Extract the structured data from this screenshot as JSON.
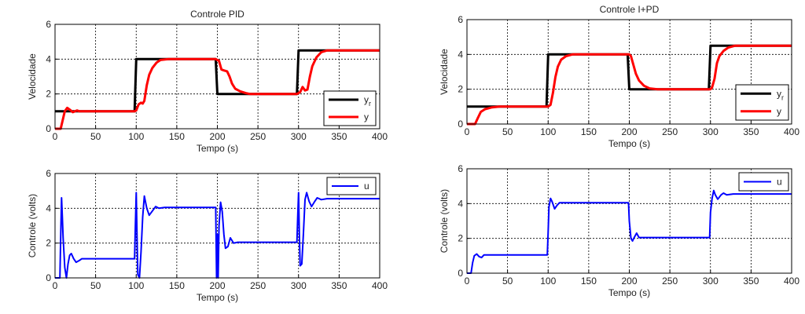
{
  "chart_data": [
    {
      "type": "line",
      "title": "Controle PID",
      "xlabel": "Tempo (s)",
      "ylabel": "Velocidade",
      "xlim": [
        0,
        400
      ],
      "ylim": [
        0,
        6
      ],
      "xticks": [
        0,
        50,
        100,
        150,
        200,
        250,
        300,
        350,
        400
      ],
      "yticks": [
        0,
        2,
        4,
        6
      ],
      "grid": true,
      "legend": "bottom-right",
      "series": [
        {
          "name": "y",
          "subscript": "r",
          "color": "#000000",
          "points": [
            [
              0,
              1
            ],
            [
              98,
              1
            ],
            [
              100,
              4
            ],
            [
              198,
              4
            ],
            [
              200,
              2
            ],
            [
              298,
              2
            ],
            [
              300,
              4.5
            ],
            [
              400,
              4.5
            ]
          ]
        },
        {
          "name": "y",
          "subscript": "",
          "color": "#ff0000",
          "points": [
            [
              0,
              0
            ],
            [
              7,
              0
            ],
            [
              12,
              1.0
            ],
            [
              15,
              1.2
            ],
            [
              18,
              1.1
            ],
            [
              22,
              0.95
            ],
            [
              27,
              1.05
            ],
            [
              30,
              1
            ],
            [
              98,
              1
            ],
            [
              100,
              1.05
            ],
            [
              103,
              1.4
            ],
            [
              106,
              1.5
            ],
            [
              108,
              1.45
            ],
            [
              110,
              1.6
            ],
            [
              113,
              2.5
            ],
            [
              116,
              3.1
            ],
            [
              120,
              3.5
            ],
            [
              125,
              3.8
            ],
            [
              130,
              3.95
            ],
            [
              140,
              4
            ],
            [
              198,
              4
            ],
            [
              202,
              3.9
            ],
            [
              205,
              3.4
            ],
            [
              208,
              3.35
            ],
            [
              212,
              3.3
            ],
            [
              215,
              3.0
            ],
            [
              218,
              2.6
            ],
            [
              222,
              2.3
            ],
            [
              228,
              2.15
            ],
            [
              235,
              2.05
            ],
            [
              240,
              2
            ],
            [
              298,
              2
            ],
            [
              302,
              2.1
            ],
            [
              305,
              2.4
            ],
            [
              308,
              2.2
            ],
            [
              311,
              2.25
            ],
            [
              314,
              3.0
            ],
            [
              317,
              3.6
            ],
            [
              322,
              4.1
            ],
            [
              328,
              4.4
            ],
            [
              335,
              4.5
            ],
            [
              400,
              4.5
            ]
          ]
        }
      ]
    },
    {
      "type": "line",
      "title": "",
      "xlabel": "Tempo (s)",
      "ylabel": "Controle (volts)",
      "xlim": [
        0,
        400
      ],
      "ylim": [
        0,
        6
      ],
      "xticks": [
        0,
        50,
        100,
        150,
        200,
        250,
        300,
        350,
        400
      ],
      "yticks": [
        0,
        2,
        4,
        6
      ],
      "grid": true,
      "legend": "top-right",
      "series": [
        {
          "name": "u",
          "subscript": "",
          "color": "#0000ff",
          "points": [
            [
              0,
              0
            ],
            [
              6,
              0
            ],
            [
              7,
              2.3
            ],
            [
              8,
              4.6
            ],
            [
              9,
              3.5
            ],
            [
              10,
              2.3
            ],
            [
              12,
              0.6
            ],
            [
              14,
              0
            ],
            [
              16,
              0.8
            ],
            [
              18,
              1.3
            ],
            [
              20,
              1.4
            ],
            [
              23,
              1.1
            ],
            [
              26,
              0.9
            ],
            [
              30,
              1.0
            ],
            [
              33,
              1.1
            ],
            [
              98,
              1.1
            ],
            [
              99,
              3
            ],
            [
              100,
              4.9
            ],
            [
              101,
              2.4
            ],
            [
              102,
              0.2
            ],
            [
              104,
              0
            ],
            [
              106,
              1.5
            ],
            [
              108,
              3.5
            ],
            [
              110,
              4.7
            ],
            [
              113,
              4.0
            ],
            [
              116,
              3.6
            ],
            [
              120,
              3.85
            ],
            [
              124,
              4.1
            ],
            [
              128,
              4.0
            ],
            [
              135,
              4.05
            ],
            [
              198,
              4.05
            ],
            [
              199,
              0
            ],
            [
              200,
              2.5
            ],
            [
              201,
              0
            ],
            [
              202,
              3
            ],
            [
              204,
              4.35
            ],
            [
              206,
              3.8
            ],
            [
              208,
              2.5
            ],
            [
              210,
              1.7
            ],
            [
              213,
              1.8
            ],
            [
              216,
              2.3
            ],
            [
              220,
              2.0
            ],
            [
              225,
              2.05
            ],
            [
              298,
              2.05
            ],
            [
              299,
              3.5
            ],
            [
              300,
              4.9
            ],
            [
              301,
              2.5
            ],
            [
              302,
              0.7
            ],
            [
              304,
              0.8
            ],
            [
              306,
              2.5
            ],
            [
              308,
              4.5
            ],
            [
              310,
              4.9
            ],
            [
              313,
              4.4
            ],
            [
              316,
              4.1
            ],
            [
              320,
              4.4
            ],
            [
              323,
              4.6
            ],
            [
              328,
              4.5
            ],
            [
              335,
              4.55
            ],
            [
              400,
              4.55
            ]
          ]
        }
      ]
    },
    {
      "type": "line",
      "title": "Controle I+PD",
      "xlabel": "Tempo (s)",
      "ylabel": "Velocidade",
      "xlim": [
        0,
        400
      ],
      "ylim": [
        0,
        6
      ],
      "xticks": [
        0,
        50,
        100,
        150,
        200,
        250,
        300,
        350,
        400
      ],
      "yticks": [
        0,
        2,
        4,
        6
      ],
      "grid": true,
      "legend": "bottom-right",
      "series": [
        {
          "name": "y",
          "subscript": "r",
          "color": "#000000",
          "points": [
            [
              0,
              1
            ],
            [
              98,
              1
            ],
            [
              100,
              4
            ],
            [
              198,
              4
            ],
            [
              200,
              2
            ],
            [
              298,
              2
            ],
            [
              300,
              4.5
            ],
            [
              400,
              4.5
            ]
          ]
        },
        {
          "name": "y",
          "subscript": "",
          "color": "#ff0000",
          "points": [
            [
              0,
              0
            ],
            [
              10,
              0
            ],
            [
              13,
              0.3
            ],
            [
              17,
              0.7
            ],
            [
              22,
              0.85
            ],
            [
              30,
              0.95
            ],
            [
              40,
              1
            ],
            [
              100,
              1
            ],
            [
              103,
              1.1
            ],
            [
              106,
              1.8
            ],
            [
              109,
              2.7
            ],
            [
              112,
              3.3
            ],
            [
              116,
              3.7
            ],
            [
              122,
              3.9
            ],
            [
              130,
              4
            ],
            [
              200,
              4
            ],
            [
              202,
              3.9
            ],
            [
              205,
              3.4
            ],
            [
              208,
              2.9
            ],
            [
              212,
              2.5
            ],
            [
              218,
              2.2
            ],
            [
              225,
              2.05
            ],
            [
              235,
              2
            ],
            [
              300,
              2
            ],
            [
              302,
              2.1
            ],
            [
              305,
              2.6
            ],
            [
              308,
              3.5
            ],
            [
              311,
              3.9
            ],
            [
              316,
              4.2
            ],
            [
              322,
              4.4
            ],
            [
              330,
              4.5
            ],
            [
              400,
              4.5
            ]
          ]
        }
      ]
    },
    {
      "type": "line",
      "title": "",
      "xlabel": "Tempo (s)",
      "ylabel": "Controle (volts)",
      "xlim": [
        0,
        400
      ],
      "ylim": [
        0,
        6
      ],
      "xticks": [
        0,
        50,
        100,
        150,
        200,
        250,
        300,
        350,
        400
      ],
      "yticks": [
        0,
        2,
        4,
        6
      ],
      "grid": true,
      "legend": "top-right",
      "series": [
        {
          "name": "u",
          "subscript": "",
          "color": "#0000ff",
          "points": [
            [
              0,
              0
            ],
            [
              5,
              0
            ],
            [
              7,
              0.6
            ],
            [
              9,
              1.0
            ],
            [
              12,
              1.1
            ],
            [
              15,
              0.95
            ],
            [
              18,
              0.9
            ],
            [
              21,
              1.05
            ],
            [
              99,
              1.05
            ],
            [
              100,
              2.4
            ],
            [
              101,
              3.8
            ],
            [
              103,
              4.3
            ],
            [
              105,
              4.1
            ],
            [
              108,
              3.7
            ],
            [
              111,
              3.9
            ],
            [
              114,
              4.05
            ],
            [
              199,
              4.05
            ],
            [
              200,
              3.0
            ],
            [
              202,
              2.0
            ],
            [
              204,
              1.85
            ],
            [
              206,
              2.05
            ],
            [
              209,
              2.3
            ],
            [
              212,
              2.05
            ],
            [
              215,
              2.05
            ],
            [
              299,
              2.05
            ],
            [
              300,
              3.5
            ],
            [
              302,
              4.3
            ],
            [
              304,
              4.75
            ],
            [
              306,
              4.5
            ],
            [
              309,
              4.25
            ],
            [
              313,
              4.5
            ],
            [
              316,
              4.6
            ],
            [
              320,
              4.5
            ],
            [
              328,
              4.55
            ],
            [
              400,
              4.55
            ]
          ]
        }
      ]
    }
  ]
}
